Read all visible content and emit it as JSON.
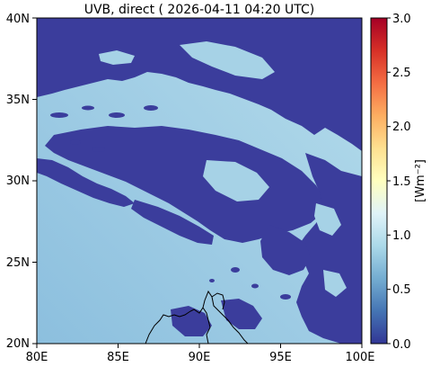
{
  "chart_data": {
    "type": "heatmap",
    "title": "UVB, direct ( 2026-04-11 04:20 UTC)",
    "x_ticks": [
      "80E",
      "85E",
      "90E",
      "95E",
      "100E"
    ],
    "y_ticks": [
      "20N",
      "25N",
      "30N",
      "35N",
      "40N"
    ],
    "xlim": [
      80,
      100
    ],
    "ylim": [
      20,
      40
    ],
    "colorbar": {
      "label": "[Wm⁻²]",
      "ticks": [
        "0.0",
        "0.5",
        "1.0",
        "1.5",
        "2.0",
        "2.5",
        "3.0"
      ],
      "range": [
        0.0,
        3.0
      ],
      "colormap": "RdYlBu_r"
    },
    "dominant_values": {
      "cloud_covered": 0.0,
      "clear_sky_south": 0.75,
      "clear_sky_north": 1.0
    },
    "overlays": [
      "coastline",
      "country borders"
    ]
  }
}
